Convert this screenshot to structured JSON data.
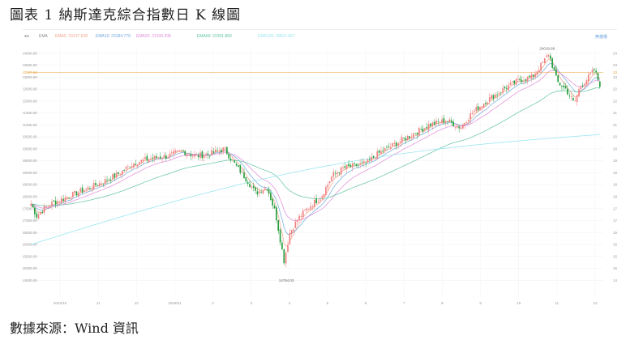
{
  "title": "圖表 1 納斯達克綜合指數日 K 線圖",
  "source": "數據來源：Wind 資訊",
  "toolbar": {
    "ema": "EMA",
    "ma5": "EMA5: 23137.628",
    "ma10": "EMA10: 23184.779",
    "ma20": "EMA20: 23100.208",
    "ma60": "EMA60: 22391.860",
    "ma120": "EMA120: 20821.957",
    "right": "無複權"
  },
  "colors": {
    "up": "#f08080",
    "down": "#1f9e3a",
    "ema5": "#f4a48c",
    "ema10": "#6fa8dc",
    "ema20": "#e08ad8",
    "ema60": "#5fc2a0",
    "ema120": "#9ae6f0",
    "hline": "#e8a23c"
  },
  "chart_data": {
    "type": "candlestick",
    "title": "",
    "ylim": [
      13800,
      24300
    ],
    "yticks": [
      "24000.00",
      "23500.00",
      "23000.00",
      "22500.00",
      "22000.00",
      "21500.00",
      "21000.00",
      "20500.00",
      "20000.00",
      "19500.00",
      "19000.00",
      "18500.00",
      "18000.00",
      "17500.00",
      "17000.00",
      "16500.00",
      "16000.00",
      "15500.00",
      "15000.00",
      "14500.00"
    ],
    "ytick_values": [
      24000,
      23500,
      23000,
      22500,
      22000,
      21500,
      21000,
      20500,
      20000,
      19500,
      19000,
      18500,
      18000,
      17500,
      17000,
      16500,
      16000,
      15500,
      15000,
      14500
    ],
    "xticks": [
      "2024/10",
      "11",
      "12",
      "2025/01",
      "2",
      "3",
      "4",
      "5",
      "6",
      "7",
      "8",
      "9",
      "10",
      "11",
      "12"
    ],
    "current_value_label": "23207.62",
    "current_value": 23207.62,
    "annotations": [
      {
        "label": "24019.99",
        "x": 0.906,
        "y": 24019.99,
        "type": "high"
      },
      {
        "label": "14784.03",
        "x": 0.449,
        "y": 14784.03,
        "type": "low"
      }
    ],
    "anchors": [
      [
        0.0,
        17700
      ],
      [
        0.01,
        17200
      ],
      [
        0.03,
        17650
      ],
      [
        0.06,
        17950
      ],
      [
        0.09,
        18250
      ],
      [
        0.12,
        18550
      ],
      [
        0.15,
        18900
      ],
      [
        0.18,
        19400
      ],
      [
        0.21,
        19600
      ],
      [
        0.24,
        19700
      ],
      [
        0.265,
        19900
      ],
      [
        0.29,
        19700
      ],
      [
        0.315,
        19800
      ],
      [
        0.34,
        20000
      ],
      [
        0.36,
        19300
      ],
      [
        0.38,
        18700
      ],
      [
        0.395,
        18150
      ],
      [
        0.415,
        18400
      ],
      [
        0.43,
        17300
      ],
      [
        0.445,
        15300
      ],
      [
        0.455,
        16500
      ],
      [
        0.47,
        17100
      ],
      [
        0.49,
        17600
      ],
      [
        0.51,
        18000
      ],
      [
        0.53,
        18900
      ],
      [
        0.55,
        19200
      ],
      [
        0.57,
        19300
      ],
      [
        0.59,
        19400
      ],
      [
        0.61,
        19800
      ],
      [
        0.64,
        20200
      ],
      [
        0.67,
        20600
      ],
      [
        0.7,
        21000
      ],
      [
        0.73,
        21200
      ],
      [
        0.755,
        20900
      ],
      [
        0.775,
        21500
      ],
      [
        0.8,
        22000
      ],
      [
        0.83,
        22500
      ],
      [
        0.86,
        22900
      ],
      [
        0.88,
        23000
      ],
      [
        0.9,
        23600
      ],
      [
        0.91,
        24000
      ],
      [
        0.925,
        22800
      ],
      [
        0.94,
        22500
      ],
      [
        0.955,
        21900
      ],
      [
        0.965,
        22600
      ],
      [
        0.98,
        23000
      ],
      [
        0.99,
        23300
      ],
      [
        1.0,
        22700
      ]
    ]
  }
}
